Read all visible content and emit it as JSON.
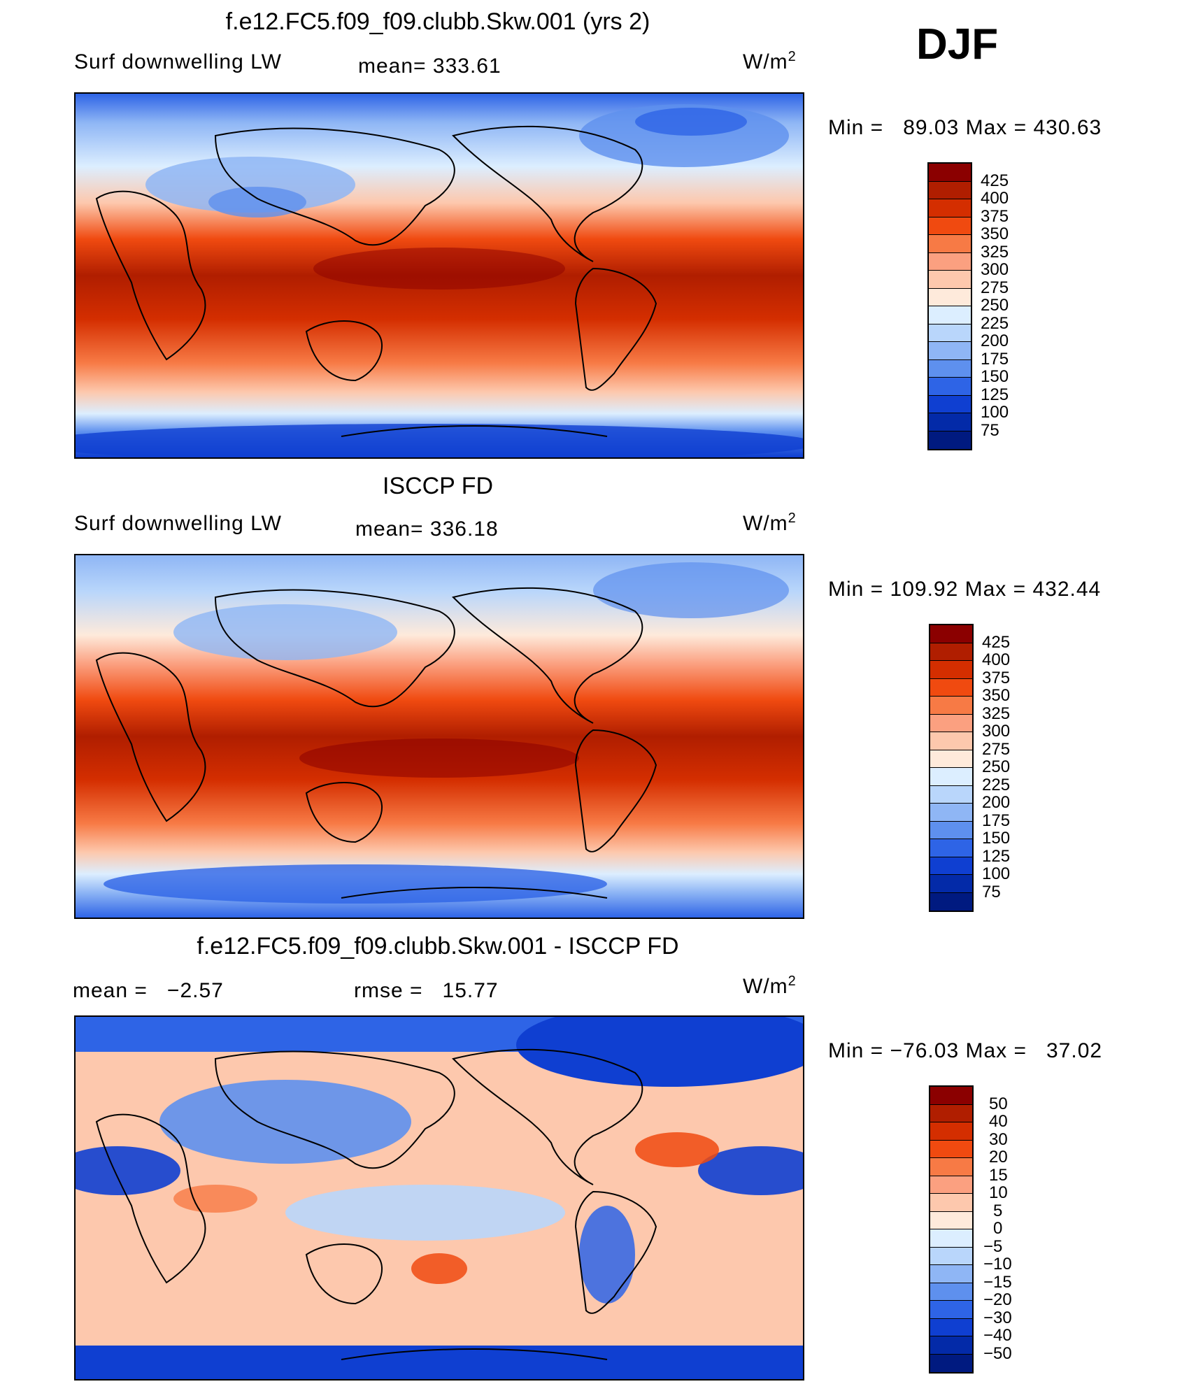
{
  "season": "DJF",
  "units_base": "W/m",
  "units_exp": "2",
  "panels": [
    {
      "title": "f.e12.FC5.f09_f09.clubb.Skw.001 (yrs 2)",
      "variable": "Surf downwelling LW",
      "stat_label": "mean=",
      "stat_value": "333.61",
      "minmax": "Min =   89.03 Max = 430.63",
      "levels": [
        "425",
        "400",
        "375",
        "350",
        "325",
        "300",
        "275",
        "250",
        "225",
        "200",
        "175",
        "150",
        "125",
        "100",
        "75"
      ]
    },
    {
      "title": "ISCCP FD",
      "variable": "Surf downwelling LW",
      "stat_label": "mean=",
      "stat_value": "336.18",
      "minmax": "Min = 109.92 Max = 432.44",
      "levels": [
        "425",
        "400",
        "375",
        "350",
        "325",
        "300",
        "275",
        "250",
        "225",
        "200",
        "175",
        "150",
        "125",
        "100",
        "75"
      ]
    },
    {
      "title": "f.e12.FC5.f09_f09.clubb.Skw.001 - ISCCP FD",
      "mean_label": "mean =",
      "mean_value": "−2.57",
      "rmse_label": "rmse =",
      "rmse_value": "15.77",
      "minmax": "Min = −76.03 Max =   37.02",
      "levels": [
        "50",
        "40",
        "30",
        "20",
        "15",
        "10",
        "5",
        "0",
        "−5",
        "−10",
        "−15",
        "−20",
        "−30",
        "−40",
        "−50"
      ]
    }
  ],
  "colors": [
    "#8b0000",
    "#b01e00",
    "#d42e00",
    "#f04a10",
    "#f77a45",
    "#fba080",
    "#fdc8ad",
    "#feeadb",
    "#dceeff",
    "#b9d6fb",
    "#8fb6f5",
    "#5e90ee",
    "#2e64e6",
    "#0f3fd1",
    "#032aa8",
    "#001a80"
  ]
}
